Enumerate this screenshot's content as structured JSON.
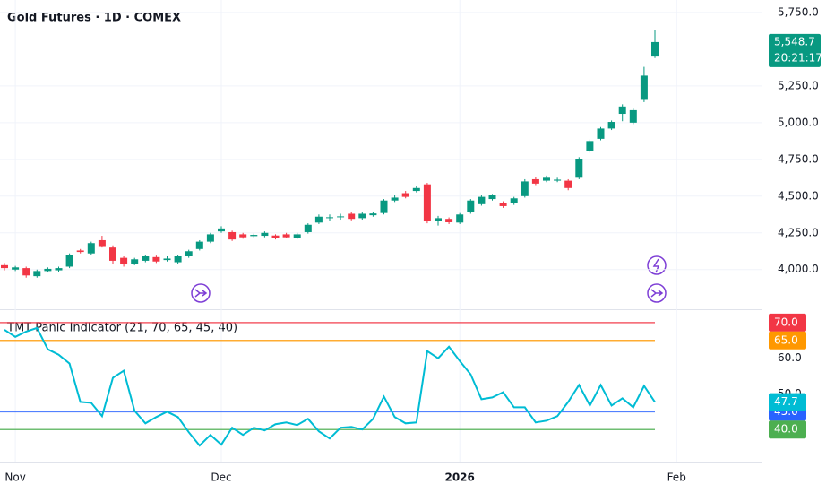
{
  "chart_data": [
    {
      "type": "candlestick",
      "title": "Gold Futures · 1D · COMEX",
      "categories": [
        null,
        "Nov",
        null,
        null,
        null,
        null,
        null,
        null,
        null,
        null,
        null,
        null,
        null,
        null,
        null,
        null,
        null,
        null,
        null,
        null,
        "Dec",
        null,
        null,
        null,
        null,
        null,
        null,
        null,
        null,
        null,
        null,
        null,
        null,
        null,
        null,
        null,
        null,
        null,
        null,
        null,
        null,
        null,
        "2026",
        null,
        null,
        null,
        null,
        null,
        null,
        null,
        null,
        null,
        null,
        null,
        null,
        null,
        null,
        null,
        null,
        null,
        null,
        null,
        "Feb"
      ],
      "open": [
        4030,
        4000,
        4010,
        3955,
        3990,
        3995,
        4020,
        4130,
        4110,
        4200,
        4150,
        4080,
        4040,
        4060,
        4085,
        4065,
        4050,
        4090,
        4140,
        4190,
        4260,
        4255,
        4240,
        4228,
        4230,
        4232,
        4240,
        4215,
        4255,
        4320,
        4350,
        4358,
        4380,
        4350,
        4370,
        4385,
        4470,
        4520,
        4535,
        4580,
        4330,
        4345,
        4320,
        4390,
        4445,
        4480,
        4455,
        4450,
        4500,
        4615,
        4605,
        4605,
        4605,
        4625,
        4805,
        4890,
        4960,
        5060,
        5000,
        5155,
        5450,
        null,
        null
      ],
      "high": [
        4045,
        4025,
        4020,
        4000,
        4015,
        4020,
        4110,
        4140,
        4190,
        4230,
        4165,
        4090,
        4080,
        4100,
        4095,
        4090,
        4100,
        4135,
        4200,
        4250,
        4295,
        4265,
        4250,
        4245,
        4260,
        4240,
        4250,
        4250,
        4315,
        4375,
        4375,
        4380,
        4390,
        4390,
        4392,
        4480,
        4505,
        4535,
        4570,
        4590,
        4365,
        4355,
        4385,
        4480,
        4505,
        4515,
        4465,
        4495,
        4615,
        4630,
        4640,
        4625,
        4615,
        4765,
        4885,
        4970,
        5015,
        5125,
        5095,
        5380,
        5630,
        null,
        null
      ],
      "low": [
        3995,
        3990,
        3945,
        3945,
        3980,
        3985,
        4010,
        4110,
        4100,
        4150,
        4040,
        4020,
        4030,
        4050,
        4045,
        4055,
        4040,
        4080,
        4130,
        4180,
        4250,
        4195,
        4210,
        4220,
        4220,
        4205,
        4212,
        4208,
        4245,
        4310,
        4330,
        4340,
        4335,
        4340,
        4360,
        4375,
        4460,
        4485,
        4525,
        4315,
        4300,
        4310,
        4310,
        4380,
        4435,
        4470,
        4420,
        4440,
        4490,
        4575,
        4595,
        4595,
        4540,
        4615,
        4795,
        4880,
        4950,
        5010,
        4990,
        5140,
        5440,
        null,
        null
      ],
      "close": [
        4010,
        4015,
        3960,
        3990,
        4005,
        4010,
        4100,
        4120,
        4180,
        4160,
        4060,
        4035,
        4070,
        4090,
        4055,
        4075,
        4090,
        4125,
        4190,
        4240,
        4280,
        4205,
        4220,
        4236,
        4250,
        4212,
        4220,
        4240,
        4305,
        4360,
        4356,
        4362,
        4345,
        4380,
        4382,
        4470,
        4490,
        4495,
        4555,
        4330,
        4350,
        4322,
        4375,
        4470,
        4495,
        4505,
        4432,
        4485,
        4600,
        4585,
        4625,
        4612,
        4555,
        4755,
        4875,
        4960,
        5005,
        5110,
        5085,
        5320,
        5548.7,
        null,
        null
      ],
      "up_color": "#089981",
      "down_color": "#f23645",
      "ylim": [
        3730,
        5835
      ],
      "yticks": [
        {
          "value": 4000,
          "label": "4,000.0"
        },
        {
          "value": 4250,
          "label": "4,250.0"
        },
        {
          "value": 4500,
          "label": "4,500.0"
        },
        {
          "value": 4750,
          "label": "4,750.0"
        },
        {
          "value": 5000,
          "label": "5,000.0"
        },
        {
          "value": 5250,
          "label": "5,250.0"
        },
        {
          "value": 5750,
          "label": "5,750.0"
        }
      ],
      "last_price_label": "5,548.7",
      "countdown": "20:21:17",
      "grid": true
    },
    {
      "type": "line",
      "title": "TMT Panic Indicator (21, 70, 65, 45, 40)",
      "series": [
        {
          "color": "#00bcd4",
          "values": [
            68,
            66,
            67.5,
            68.5,
            62.5,
            61,
            58.5,
            47.75,
            47.5,
            43.75,
            54.5,
            56.5,
            45.25,
            41.75,
            43.5,
            45,
            43.5,
            39.25,
            35.5,
            38.5,
            35.75,
            40.5,
            38.5,
            40.5,
            39.75,
            41.5,
            42,
            41.25,
            43,
            39.5,
            37.5,
            40.5,
            40.75,
            40,
            43,
            49.25,
            43.5,
            41.75,
            42,
            62,
            60,
            63.25,
            59.25,
            55.5,
            48.5,
            49,
            50.5,
            46.25,
            46.25,
            42,
            42.5,
            43.75,
            47.75,
            52.5,
            46.75,
            52.5,
            46.75,
            48.75,
            46.25,
            52.25,
            47.7,
            null,
            null
          ]
        }
      ],
      "levels": [
        {
          "value": 70,
          "label": "70.0",
          "color": "#f23645"
        },
        {
          "value": 65,
          "label": "65.0",
          "color": "#ff9800"
        },
        {
          "value": 45,
          "label": "45.0",
          "color": "#2962ff"
        },
        {
          "value": 40,
          "label": "40.0",
          "color": "#4caf50"
        }
      ],
      "ylim": [
        31,
        73.75
      ],
      "yticks": [
        {
          "value": 60,
          "label": "60.0"
        },
        {
          "value": 50,
          "label": "50.0"
        }
      ]
    }
  ]
}
